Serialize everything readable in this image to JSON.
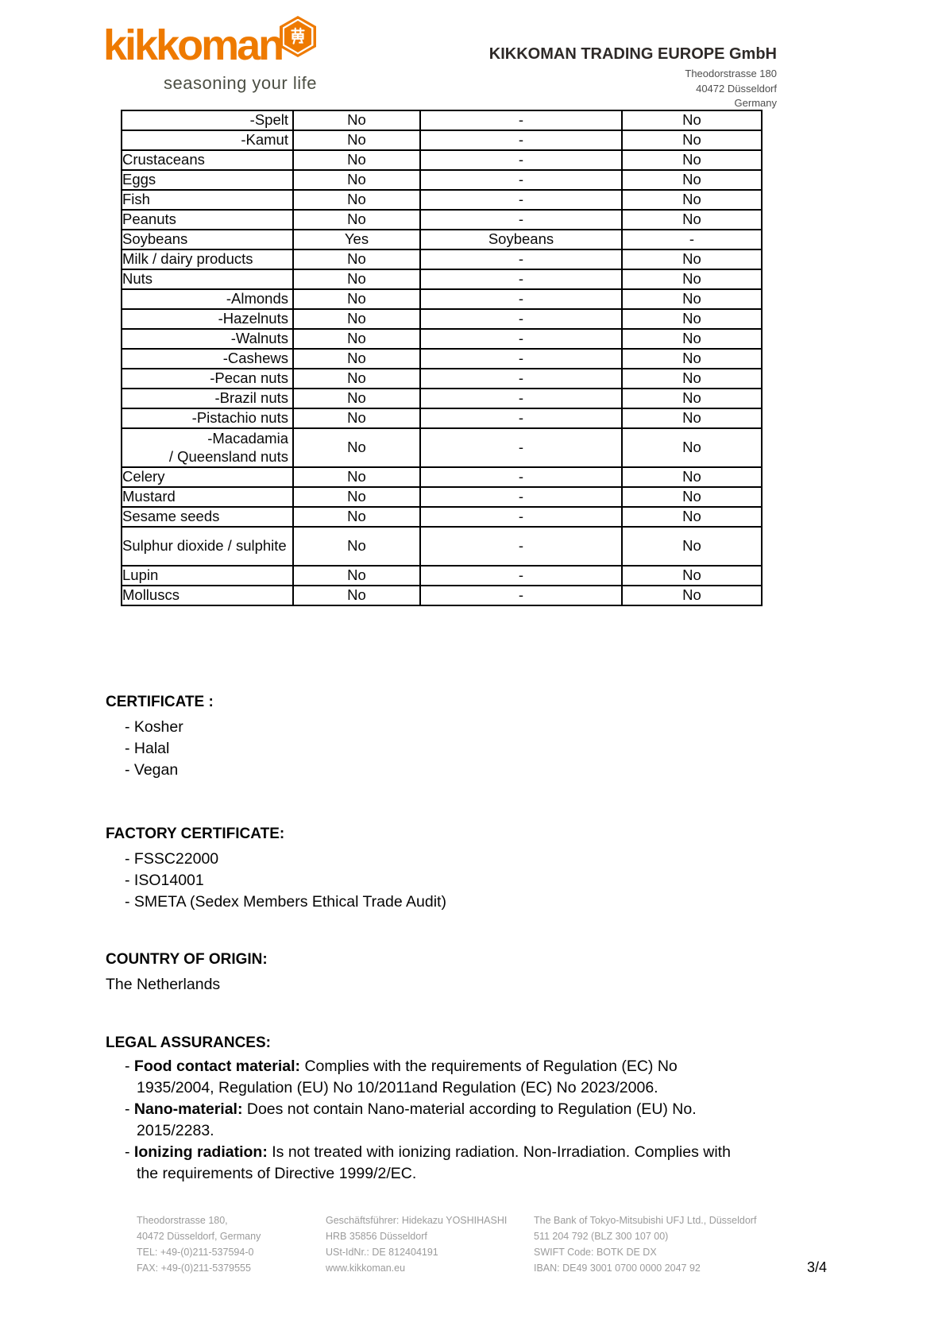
{
  "brand": {
    "logo_text": "kikkoman",
    "tagline": "seasoning your life",
    "badge_glyph": "萬",
    "orange": "#ee7a00",
    "tagline_color": "#4c4f44"
  },
  "letterhead": {
    "company": "KIKKOMAN TRADING EUROPE GmbH",
    "address_lines": [
      "Theodorstrasse 180",
      "40472 Düsseldorf",
      "Germany"
    ]
  },
  "allergen_table": {
    "rows": [
      {
        "label": "-Spelt",
        "sub": true,
        "cells": [
          "No",
          "-",
          "No"
        ]
      },
      {
        "label": "-Kamut",
        "sub": true,
        "cells": [
          "No",
          "-",
          "No"
        ]
      },
      {
        "label": "Crustaceans",
        "sub": false,
        "cells": [
          "No",
          "-",
          "No"
        ]
      },
      {
        "label": "Eggs",
        "sub": false,
        "cells": [
          "No",
          "-",
          "No"
        ]
      },
      {
        "label": "Fish",
        "sub": false,
        "cells": [
          "No",
          "-",
          "No"
        ]
      },
      {
        "label": "Peanuts",
        "sub": false,
        "cells": [
          "No",
          "-",
          "No"
        ]
      },
      {
        "label": "Soybeans",
        "sub": false,
        "cells": [
          "Yes",
          "Soybeans",
          "-"
        ]
      },
      {
        "label": "Milk / dairy products",
        "sub": false,
        "cells": [
          "No",
          "-",
          "No"
        ]
      },
      {
        "label": "Nuts",
        "sub": false,
        "cells": [
          "No",
          "-",
          "No"
        ]
      },
      {
        "label": "-Almonds",
        "sub": true,
        "cells": [
          "No",
          "-",
          "No"
        ]
      },
      {
        "label": "-Hazelnuts",
        "sub": true,
        "cells": [
          "No",
          "-",
          "No"
        ]
      },
      {
        "label": "-Walnuts",
        "sub": true,
        "cells": [
          "No",
          "-",
          "No"
        ]
      },
      {
        "label": "-Cashews",
        "sub": true,
        "cells": [
          "No",
          "-",
          "No"
        ]
      },
      {
        "label": "-Pecan nuts",
        "sub": true,
        "cells": [
          "No",
          "-",
          "No"
        ]
      },
      {
        "label": "-Brazil nuts",
        "sub": true,
        "cells": [
          "No",
          "-",
          "No"
        ]
      },
      {
        "label": "-Pistachio nuts",
        "sub": true,
        "cells": [
          "No",
          "-",
          "No"
        ]
      },
      {
        "label": "-Macadamia / Queensland nuts",
        "sub": true,
        "tall": true,
        "lines": [
          "-Macadamia",
          "/ Queensland nuts"
        ],
        "cells": [
          "No",
          "-",
          "No"
        ]
      },
      {
        "label": "Celery",
        "sub": false,
        "cells": [
          "No",
          "-",
          "No"
        ]
      },
      {
        "label": "Mustard",
        "sub": false,
        "cells": [
          "No",
          "-",
          "No"
        ]
      },
      {
        "label": "Sesame seeds",
        "sub": false,
        "cells": [
          "No",
          "-",
          "No"
        ]
      },
      {
        "label": "Sulphur dioxide / sulphite",
        "sub": false,
        "tall": true,
        "cells": [
          "No",
          "-",
          "No"
        ]
      },
      {
        "label": "Lupin",
        "sub": false,
        "cells": [
          "No",
          "-",
          "No"
        ]
      },
      {
        "label": "Molluscs",
        "sub": false,
        "cells": [
          "No",
          "-",
          "No"
        ]
      }
    ]
  },
  "sections": {
    "certificate": {
      "heading": "CERTIFICATE :",
      "items": [
        "- Kosher",
        "- Halal",
        "- Vegan"
      ]
    },
    "factory_certificate": {
      "heading": "FACTORY CERTIFICATE:",
      "items": [
        "- FSSC22000",
        "- ISO14001",
        "- SMETA (Sedex Members Ethical Trade Audit)"
      ]
    },
    "country_of_origin": {
      "heading": "COUNTRY OF ORIGIN:",
      "text": "The Netherlands"
    },
    "legal_assurances": {
      "heading": "LEGAL ASSURANCES:",
      "items": [
        {
          "label": "Food contact material:",
          "text": "Complies with the requirements of Regulation (EC) No\n1935/2004, Regulation (EU) No 10/2011and Regulation (EC) No 2023/2006."
        },
        {
          "label": "Nano-material:",
          "text": "Does not contain Nano-material according to Regulation (EU) No.\n2015/2283."
        },
        {
          "label": "Ionizing radiation:",
          "text": "Is not treated with ionizing radiation. Non-Irradiation. Complies with\nthe requirements of Directive 1999/2/EC."
        }
      ]
    }
  },
  "footer": {
    "columns": [
      {
        "lines": [
          "Theodorstrasse 180,",
          "40472 Düsseldorf, Germany",
          "TEL: +49-(0)211-537594-0",
          "FAX: +49-(0)211-5379555"
        ]
      },
      {
        "lines": [
          "Geschäftsführer: Hidekazu YOSHIHASHI",
          "HRB 35856 Düsseldorf",
          "USt-IdNr.: DE 812404191",
          "www.kikkoman.eu"
        ]
      },
      {
        "lines": [
          "The Bank of Tokyo-Mitsubishi UFJ Ltd., Düsseldorf",
          "511 204 792 (BLZ 300 107 00)",
          "SWIFT Code: BOTK DE DX",
          "IBAN: DE49 3001 0700 0000 2047 92"
        ]
      }
    ],
    "page_number": "3/4"
  }
}
